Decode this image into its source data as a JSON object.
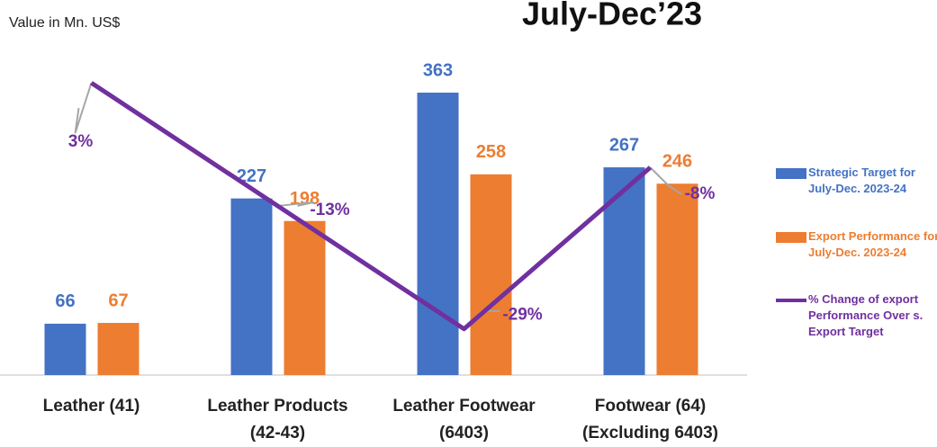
{
  "chart_data": {
    "type": "bar-line",
    "title": "July-Dec’23",
    "y_label": "Value in Mn. US$",
    "categories": [
      [
        "Leather (41)"
      ],
      [
        "Leather Products",
        "(42-43)"
      ],
      [
        "Leather Footwear",
        "(6403)"
      ],
      [
        "Footwear (64)",
        "(Excluding 6403)"
      ]
    ],
    "ylim": [
      0,
      420
    ],
    "y2lim": [
      -35,
      7.5
    ],
    "series": [
      {
        "name": "Strategic Target for July-Dec. 2023-24",
        "type": "bar",
        "color": "#4472c4",
        "values": [
          66,
          227,
          363,
          267
        ]
      },
      {
        "name": "Export Performance for July-Dec. 2023-24",
        "type": "bar",
        "color": "#ed7d31",
        "values": [
          67,
          198,
          258,
          246
        ]
      },
      {
        "name": "% Change of export Performance Over s. Export Target",
        "type": "line",
        "axis": "y2",
        "color": "#7030a0",
        "values": [
          3,
          -13,
          -29,
          -8
        ],
        "value_labels": [
          "3%",
          "-13%",
          "-29%",
          "-8%"
        ]
      }
    ],
    "legend": "right"
  }
}
